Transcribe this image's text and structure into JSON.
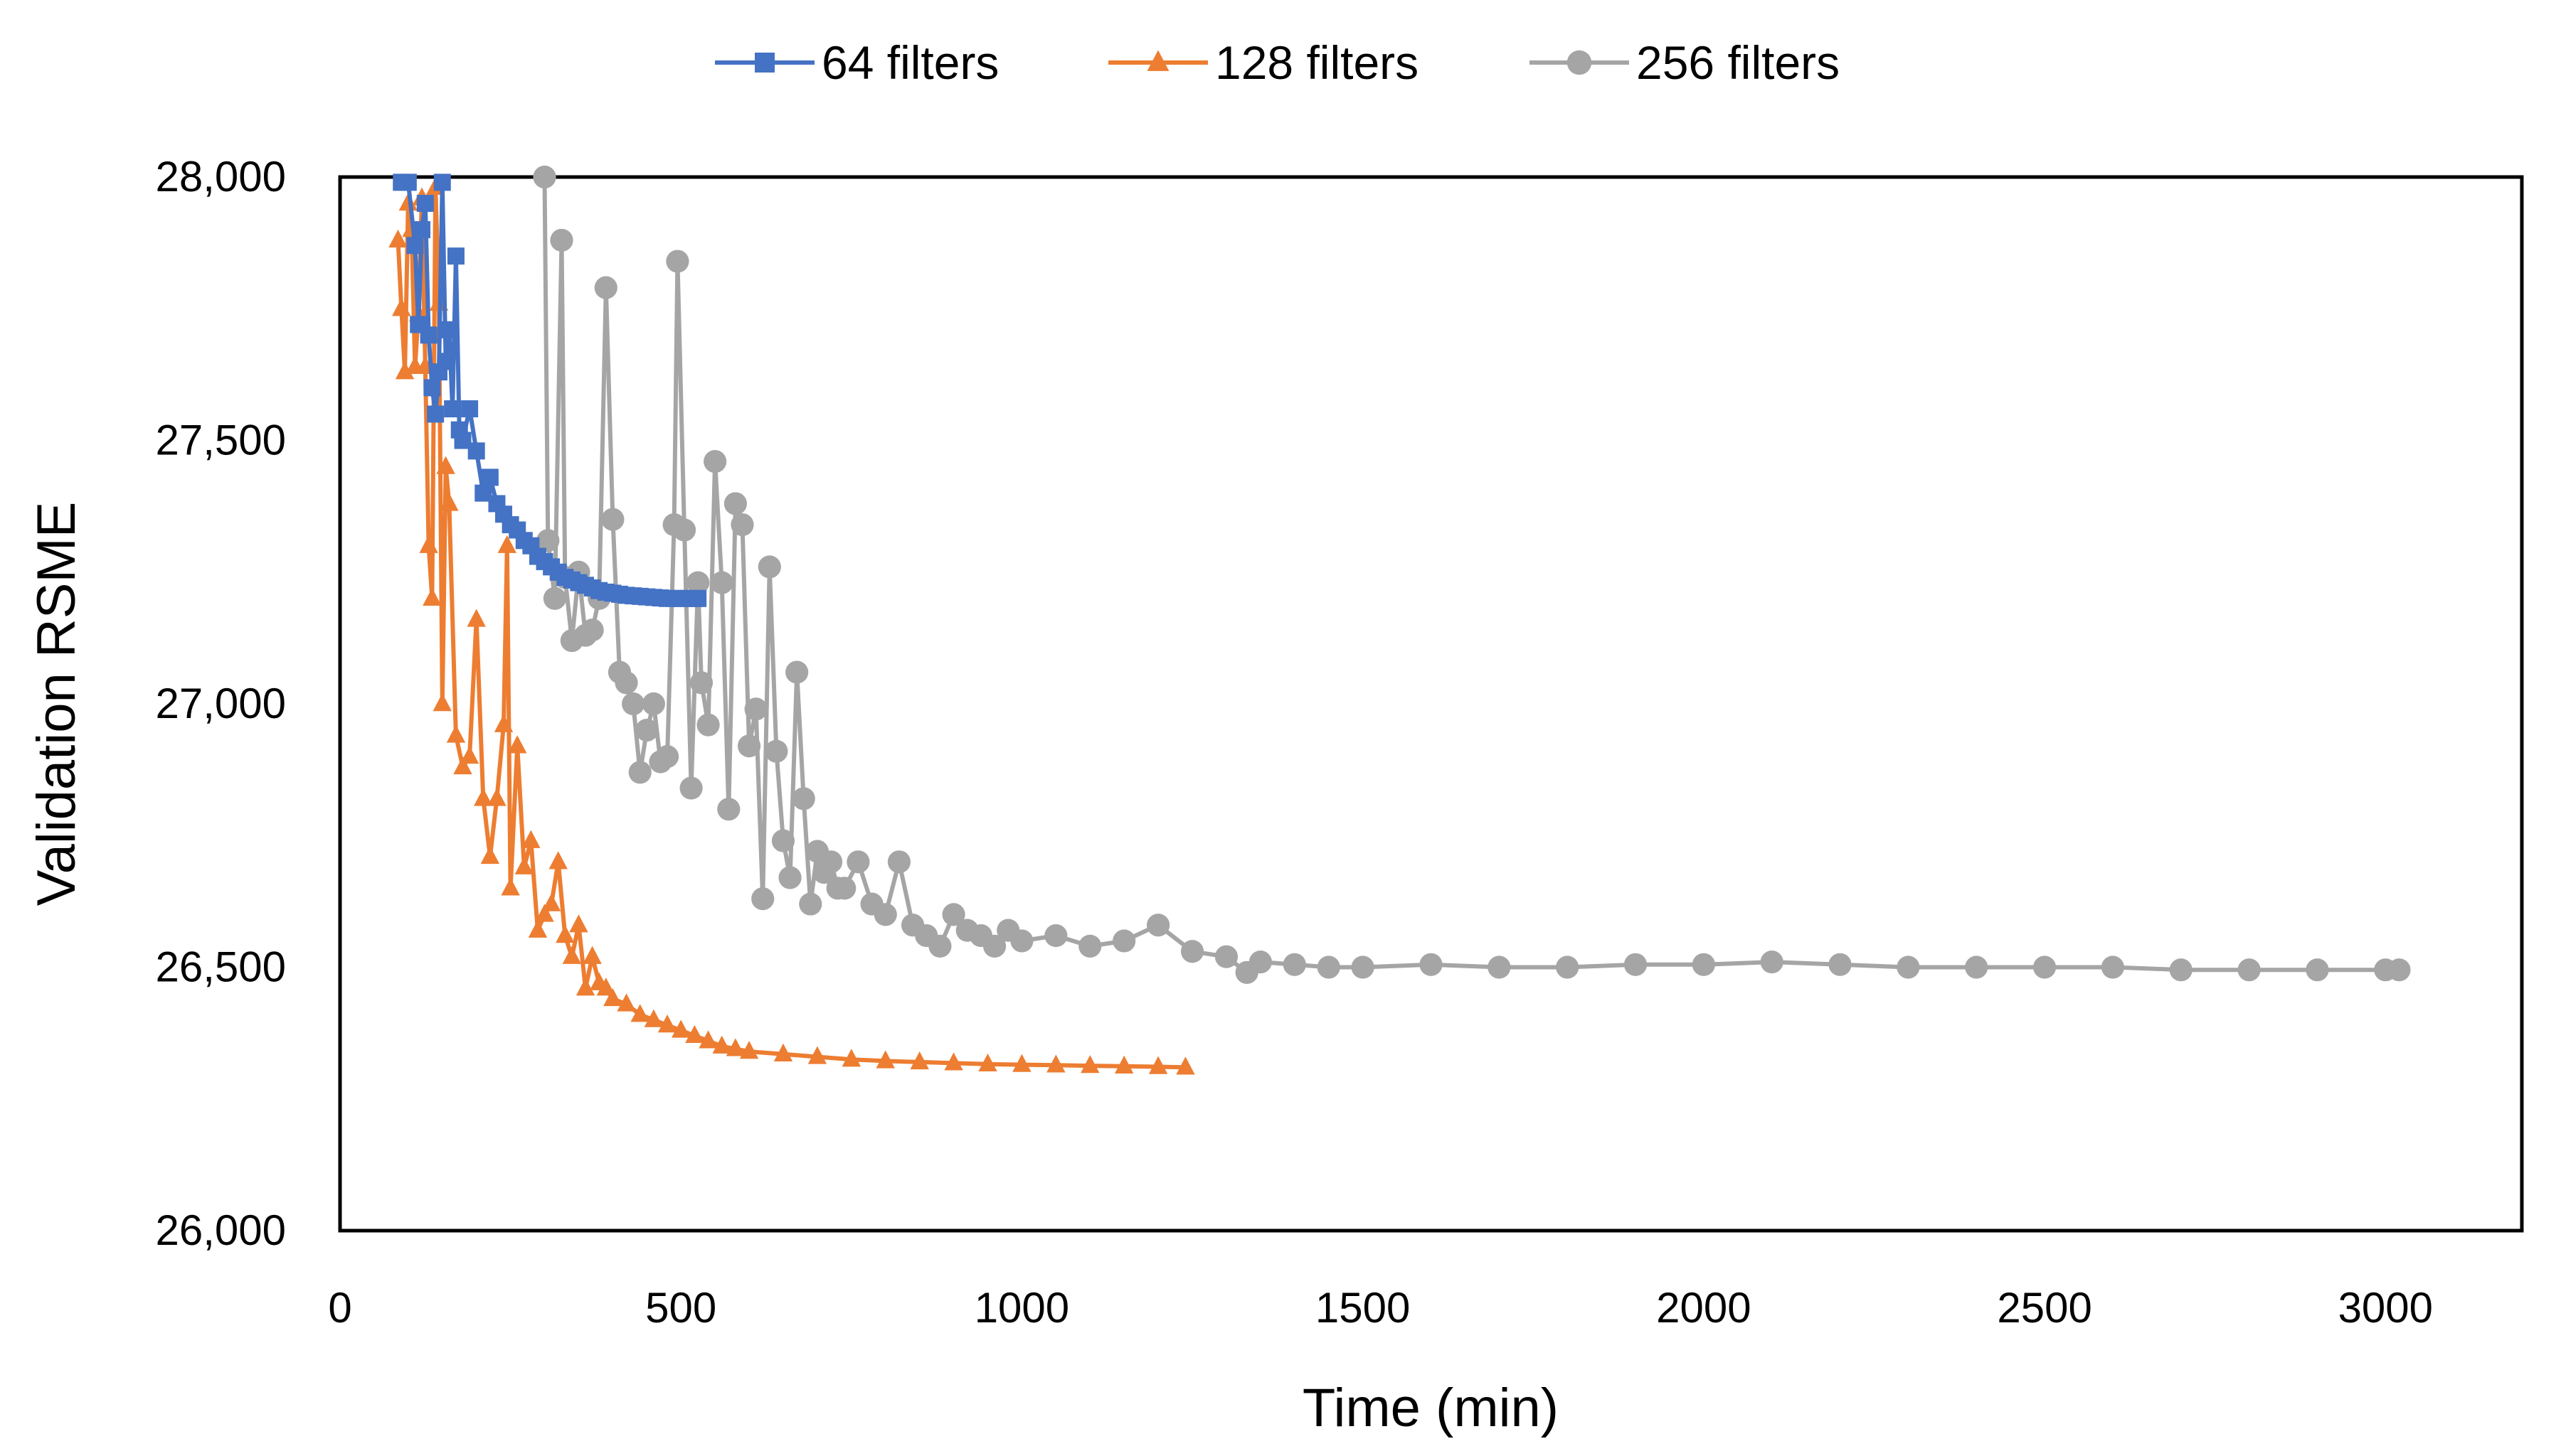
{
  "chart_data": {
    "type": "line",
    "title": "",
    "xlabel": "Time (min)",
    "ylabel": "Validation RSME",
    "xlim": [
      0,
      3200
    ],
    "ylim": [
      26000,
      28000
    ],
    "x_ticks": [
      0,
      500,
      1000,
      1500,
      2000,
      2500,
      3000
    ],
    "x_tick_labels": [
      "0",
      "500",
      "1000",
      "1500",
      "2000",
      "2500",
      "3000"
    ],
    "y_ticks": [
      26000,
      26500,
      27000,
      27500,
      28000
    ],
    "y_tick_labels": [
      "26,000",
      "26,500",
      "27,000",
      "27,500",
      "28,000"
    ],
    "grid": false,
    "legend_position": "top",
    "series": [
      {
        "name": "64 filters",
        "color": "#4472C4",
        "marker": "square",
        "x": [
          90,
          100,
          110,
          115,
          120,
          125,
          130,
          135,
          140,
          145,
          150,
          155,
          160,
          165,
          170,
          175,
          180,
          190,
          200,
          210,
          220,
          230,
          240,
          250,
          260,
          270,
          280,
          290,
          300,
          310,
          320,
          330,
          340,
          350,
          360,
          370,
          380,
          390,
          400,
          410,
          420,
          430,
          440,
          450,
          460,
          470,
          480,
          490,
          500,
          510,
          520,
          525
        ],
        "y": [
          27990,
          27990,
          27870,
          27720,
          27900,
          27950,
          27700,
          27600,
          27550,
          27630,
          27990,
          27650,
          27710,
          27560,
          27850,
          27520,
          27500,
          27560,
          27480,
          27400,
          27430,
          27380,
          27360,
          27340,
          27330,
          27310,
          27300,
          27280,
          27270,
          27260,
          27250,
          27240,
          27235,
          27230,
          27225,
          27220,
          27215,
          27212,
          27210,
          27208,
          27206,
          27205,
          27204,
          27203,
          27202,
          27201,
          27200,
          27200,
          27200,
          27200,
          27200,
          27200
        ]
      },
      {
        "name": "128 filters",
        "color": "#ED7D31",
        "marker": "triangle",
        "x": [
          85,
          90,
          95,
          100,
          105,
          110,
          115,
          120,
          125,
          130,
          135,
          140,
          145,
          150,
          155,
          160,
          170,
          180,
          190,
          200,
          210,
          220,
          230,
          240,
          245,
          250,
          260,
          270,
          280,
          290,
          300,
          310,
          320,
          330,
          340,
          350,
          360,
          370,
          380,
          390,
          400,
          420,
          440,
          460,
          480,
          500,
          520,
          540,
          560,
          580,
          600,
          650,
          700,
          750,
          800,
          850,
          900,
          950,
          1000,
          1050,
          1100,
          1150,
          1200,
          1240
        ],
        "y": [
          27880,
          27750,
          27630,
          27950,
          27900,
          27640,
          27740,
          27960,
          27640,
          27300,
          27200,
          27980,
          27760,
          27000,
          27450,
          27380,
          26940,
          26880,
          26900,
          27160,
          26820,
          26710,
          26820,
          26960,
          27300,
          26650,
          26920,
          26690,
          26740,
          26570,
          26600,
          26620,
          26700,
          26560,
          26520,
          26580,
          26460,
          26520,
          26470,
          26460,
          26440,
          26430,
          26410,
          26400,
          26390,
          26380,
          26370,
          26360,
          26350,
          26345,
          26340,
          26335,
          26330,
          26325,
          26322,
          26320,
          26318,
          26316,
          26315,
          26314,
          26313,
          26312,
          26311,
          26310
        ]
      },
      {
        "name": "256 filters",
        "color": "#A5A5A5",
        "marker": "circle",
        "x": [
          300,
          305,
          315,
          325,
          330,
          340,
          350,
          360,
          370,
          380,
          390,
          400,
          410,
          420,
          430,
          440,
          450,
          460,
          470,
          480,
          490,
          495,
          505,
          515,
          525,
          530,
          540,
          550,
          560,
          570,
          580,
          590,
          600,
          610,
          620,
          630,
          640,
          650,
          660,
          670,
          680,
          690,
          700,
          710,
          720,
          730,
          740,
          760,
          780,
          800,
          820,
          840,
          860,
          880,
          900,
          920,
          940,
          960,
          980,
          1000,
          1050,
          1100,
          1150,
          1200,
          1250,
          1300,
          1330,
          1350,
          1400,
          1450,
          1500,
          1600,
          1700,
          1800,
          1900,
          2000,
          2100,
          2200,
          2300,
          2400,
          2500,
          2600,
          2700,
          2800,
          2900,
          3000,
          3020
        ],
        "y": [
          28000,
          27310,
          27200,
          27880,
          27240,
          27120,
          27250,
          27130,
          27140,
          27200,
          27790,
          27350,
          27060,
          27040,
          27000,
          26870,
          26950,
          27000,
          26890,
          26900,
          27340,
          27840,
          27330,
          26840,
          27230,
          27040,
          26960,
          27460,
          27230,
          26800,
          27380,
          27340,
          26920,
          26990,
          26630,
          27260,
          26910,
          26740,
          26670,
          27060,
          26820,
          26620,
          26720,
          26680,
          26700,
          26650,
          26650,
          26700,
          26620,
          26600,
          26700,
          26580,
          26560,
          26540,
          26600,
          26570,
          26560,
          26540,
          26570,
          26550,
          26560,
          26540,
          26550,
          26580,
          26530,
          26520,
          26490,
          26510,
          26505,
          26500,
          26500,
          26505,
          26500,
          26500,
          26505,
          26505,
          26510,
          26505,
          26500,
          26500,
          26500,
          26500,
          26495,
          26495,
          26495,
          26495,
          26495
        ]
      }
    ]
  }
}
